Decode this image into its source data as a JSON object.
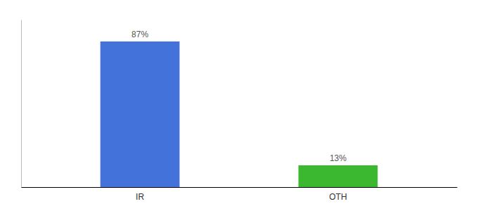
{
  "chart_data": {
    "type": "bar",
    "categories": [
      "IR",
      "OTH"
    ],
    "values": [
      87,
      13
    ],
    "value_labels": [
      "87%",
      "13%"
    ],
    "colors": [
      "#4472db",
      "#3cb830"
    ],
    "ylim": [
      0,
      100
    ],
    "data_labels": true,
    "tick_labels": "x"
  }
}
